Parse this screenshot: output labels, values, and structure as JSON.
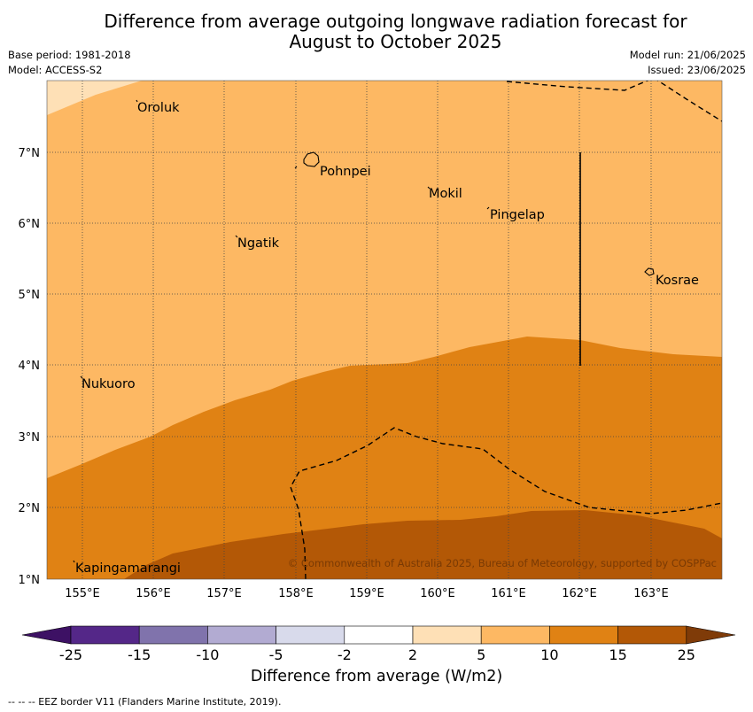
{
  "title_line1": "Difference from average outgoing longwave radiation forecast for",
  "title_line2": "August to October 2025",
  "base_period": "Base period: 1981-2018",
  "model": "Model: ACCESS-S2",
  "model_run": "Model run: 21/06/2025",
  "issued": "Issued: 23/06/2025",
  "lat_labels": [
    "7°N",
    "6°N",
    "5°N",
    "4°N",
    "3°N",
    "2°N",
    "1°N"
  ],
  "lon_labels": [
    "155°E",
    "156°E",
    "157°E",
    "158°E",
    "159°E",
    "160°E",
    "161°E",
    "162°E",
    "163°E"
  ],
  "places": [
    "Oroluk",
    "Pohnpei",
    "Mokil",
    "Pingelap",
    "Ngatik",
    "Kosrae",
    "Nukuoro",
    "Kapingamarangi"
  ],
  "copyright": "© Commonwealth of Australia 2025, Bureau of Meteorology, supported by COSPPac",
  "colorbar": {
    "ticks": [
      "-25",
      "-15",
      "-10",
      "-5",
      "-2",
      "2",
      "5",
      "10",
      "15",
      "25"
    ],
    "colors": [
      "#3d1164",
      "#542788",
      "#8073ac",
      "#b2abd2",
      "#d8daeb",
      "#ffffff",
      "#fee0b6",
      "#fdb863",
      "#e08214",
      "#b35806",
      "#7f3b08"
    ],
    "label": "Difference from average (W/m2)"
  },
  "footnote": "--  --  -- EEZ border V11 (Flanders Marine Institute, 2019)."
}
